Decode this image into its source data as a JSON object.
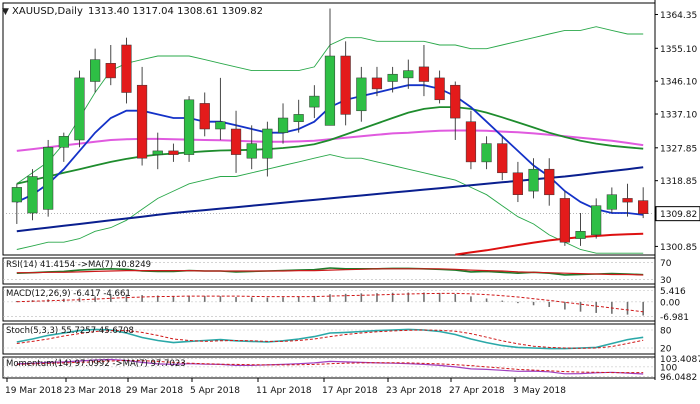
{
  "header": {
    "symbol": "XAUUSD,Daily",
    "ohlc": "1313.40 1317.04 1308.61 1309.82"
  },
  "colors": {
    "bull": "#2ebf45",
    "bear": "#e31b1b",
    "price_line_blue": "#1432c8",
    "sma_navy": "#0a1f8f",
    "ema_red": "#dd1010",
    "ma_green": "#1e8c2d",
    "ma_violet": "#e05adf",
    "bollinger": "#2aa84a",
    "rsi": "#1e7a2a",
    "rsi_ma": "#cc1a1a",
    "macd_hist": "#707070",
    "macd_signal": "#d01818",
    "stoch_main": "#2aa8a8",
    "stoch_signal": "#d01818",
    "momentum": "#a040c0",
    "momentum_ma": "#d01818"
  },
  "chart_data": [
    {
      "type": "candlestick",
      "panel": "price",
      "title": "XAUUSD,Daily",
      "y_ticks": [
        "1364.35",
        "1355.10",
        "1346.10",
        "1337.10",
        "1327.85",
        "1318.85",
        "1309.82",
        "1300.85"
      ],
      "ylim": [
        1298.5,
        1367.5
      ],
      "current_price": "1309.82",
      "x_labels": [
        "19 Mar 2018",
        "23 Mar 2018",
        "29 Mar 2018",
        "5 Apr 2018",
        "11 Apr 2018",
        "17 Apr 2018",
        "23 Apr 2018",
        "27 Apr 2018",
        "3 May 2018"
      ],
      "candles": [
        {
          "o": 1313.0,
          "h": 1318.0,
          "l": 1307.0,
          "c": 1317.0
        },
        {
          "o": 1310.0,
          "h": 1322.0,
          "l": 1308.0,
          "c": 1320.0
        },
        {
          "o": 1311.0,
          "h": 1330.0,
          "l": 1309.0,
          "c": 1328.0
        },
        {
          "o": 1328.0,
          "h": 1332.0,
          "l": 1324.0,
          "c": 1331.0
        },
        {
          "o": 1330.0,
          "h": 1349.0,
          "l": 1328.0,
          "c": 1347.0
        },
        {
          "o": 1346.0,
          "h": 1355.0,
          "l": 1343.0,
          "c": 1352.0
        },
        {
          "o": 1351.0,
          "h": 1356.0,
          "l": 1345.0,
          "c": 1347.0
        },
        {
          "o": 1356.0,
          "h": 1358.0,
          "l": 1340.0,
          "c": 1343.0
        },
        {
          "o": 1345.0,
          "h": 1350.0,
          "l": 1323.0,
          "c": 1325.0
        },
        {
          "o": 1326.0,
          "h": 1332.0,
          "l": 1322.0,
          "c": 1327.0
        },
        {
          "o": 1327.0,
          "h": 1329.0,
          "l": 1324.0,
          "c": 1326.0
        },
        {
          "o": 1326.0,
          "h": 1342.0,
          "l": 1324.0,
          "c": 1341.0
        },
        {
          "o": 1340.0,
          "h": 1343.0,
          "l": 1331.0,
          "c": 1333.0
        },
        {
          "o": 1333.0,
          "h": 1347.0,
          "l": 1330.0,
          "c": 1335.0
        },
        {
          "o": 1333.0,
          "h": 1338.0,
          "l": 1321.0,
          "c": 1326.0
        },
        {
          "o": 1325.0,
          "h": 1334.0,
          "l": 1322.0,
          "c": 1329.0
        },
        {
          "o": 1325.0,
          "h": 1335.0,
          "l": 1320.0,
          "c": 1333.0
        },
        {
          "o": 1332.0,
          "h": 1340.0,
          "l": 1329.0,
          "c": 1336.0
        },
        {
          "o": 1335.0,
          "h": 1341.0,
          "l": 1332.0,
          "c": 1337.0
        },
        {
          "o": 1339.0,
          "h": 1345.0,
          "l": 1336.0,
          "c": 1342.0
        },
        {
          "o": 1334.0,
          "h": 1366.0,
          "l": 1334.0,
          "c": 1353.0
        },
        {
          "o": 1353.0,
          "h": 1357.0,
          "l": 1334.0,
          "c": 1337.0
        },
        {
          "o": 1338.0,
          "h": 1350.0,
          "l": 1335.0,
          "c": 1347.0
        },
        {
          "o": 1347.0,
          "h": 1350.0,
          "l": 1342.0,
          "c": 1344.0
        },
        {
          "o": 1346.0,
          "h": 1350.0,
          "l": 1343.0,
          "c": 1348.0
        },
        {
          "o": 1347.0,
          "h": 1352.0,
          "l": 1344.0,
          "c": 1349.0
        },
        {
          "o": 1350.0,
          "h": 1356.0,
          "l": 1342.0,
          "c": 1346.0
        },
        {
          "o": 1347.0,
          "h": 1349.0,
          "l": 1340.0,
          "c": 1341.0
        },
        {
          "o": 1345.0,
          "h": 1346.0,
          "l": 1330.0,
          "c": 1336.0
        },
        {
          "o": 1335.0,
          "h": 1338.0,
          "l": 1322.0,
          "c": 1324.0
        },
        {
          "o": 1324.0,
          "h": 1331.0,
          "l": 1322.0,
          "c": 1329.0
        },
        {
          "o": 1329.0,
          "h": 1331.0,
          "l": 1319.0,
          "c": 1321.0
        },
        {
          "o": 1321.0,
          "h": 1324.0,
          "l": 1313.0,
          "c": 1315.0
        },
        {
          "o": 1316.0,
          "h": 1325.0,
          "l": 1314.0,
          "c": 1322.0
        },
        {
          "o": 1322.0,
          "h": 1325.0,
          "l": 1312.0,
          "c": 1315.0
        },
        {
          "o": 1314.0,
          "h": 1316.0,
          "l": 1301.0,
          "c": 1302.0
        },
        {
          "o": 1303.0,
          "h": 1310.0,
          "l": 1301.0,
          "c": 1305.0
        },
        {
          "o": 1304.0,
          "h": 1314.0,
          "l": 1303.0,
          "c": 1312.0
        },
        {
          "o": 1311.0,
          "h": 1317.0,
          "l": 1310.0,
          "c": 1315.0
        },
        {
          "o": 1314.0,
          "h": 1318.0,
          "l": 1309.0,
          "c": 1313.0
        },
        {
          "o": 1313.4,
          "h": 1317.04,
          "l": 1308.61,
          "c": 1309.82
        }
      ],
      "overlays": [
        {
          "key": "bb_upper",
          "style": "bollinger",
          "values": [
            1318,
            1321,
            1324,
            1329,
            1336,
            1343,
            1349,
            1351,
            1352,
            1353,
            1353,
            1353,
            1352,
            1351,
            1350,
            1349,
            1349,
            1349,
            1349,
            1350,
            1356,
            1358,
            1358,
            1357,
            1357,
            1357,
            1357,
            1356,
            1356,
            1355,
            1355,
            1356,
            1357,
            1358,
            1359,
            1360,
            1360,
            1361,
            1360,
            1359,
            1359
          ]
        },
        {
          "key": "bb_lower",
          "style": "bollinger",
          "values": [
            1300,
            1301,
            1302,
            1302,
            1303,
            1305,
            1306,
            1308,
            1311,
            1314,
            1316,
            1318,
            1319,
            1320,
            1320,
            1321,
            1322,
            1323,
            1324,
            1325,
            1326,
            1325,
            1325,
            1324,
            1323,
            1322,
            1321,
            1320,
            1319,
            1317,
            1315,
            1312,
            1309,
            1307,
            1304,
            1302,
            1300,
            1299,
            1299,
            1299,
            1299
          ]
        },
        {
          "key": "sma_long",
          "style": "sma_navy",
          "values": [
            1305,
            1305.5,
            1306,
            1306.5,
            1307,
            1307.5,
            1308,
            1308.5,
            1309,
            1309.5,
            1310,
            1310.4,
            1310.8,
            1311.2,
            1311.6,
            1312,
            1312.4,
            1312.8,
            1313.2,
            1313.6,
            1314,
            1314.4,
            1314.8,
            1315.2,
            1315.6,
            1316,
            1316.4,
            1316.8,
            1317.2,
            1317.6,
            1318,
            1318.4,
            1318.8,
            1319.2,
            1319.6,
            1320,
            1320.5,
            1321,
            1321.5,
            1322,
            1322.5
          ]
        },
        {
          "key": "ema_bottom",
          "style": "ema_red",
          "values": [
            null,
            null,
            null,
            null,
            null,
            null,
            null,
            null,
            null,
            null,
            null,
            null,
            null,
            null,
            null,
            null,
            null,
            null,
            null,
            null,
            null,
            null,
            null,
            null,
            null,
            null,
            null,
            null,
            1298.6,
            1299.2,
            1299.8,
            1300.5,
            1301.2,
            1301.9,
            1302.5,
            1303.0,
            1303.4,
            1303.7,
            1304.0,
            1304.2,
            1304.3
          ]
        },
        {
          "key": "ma_violet",
          "style": "ma_violet",
          "values": [
            1327,
            1327.5,
            1328,
            1328.5,
            1329,
            1329.5,
            1330,
            1330.2,
            1330.3,
            1330.3,
            1330.2,
            1330.1,
            1330,
            1329.9,
            1329.8,
            1329.6,
            1329.5,
            1329.5,
            1329.6,
            1329.8,
            1330.2,
            1330.6,
            1331,
            1331.4,
            1331.8,
            1332,
            1332.3,
            1332.5,
            1332.6,
            1332.6,
            1332.5,
            1332.3,
            1332.1,
            1331.8,
            1331.4,
            1331,
            1330.6,
            1330.2,
            1329.8,
            1329.2,
            1328.6
          ]
        },
        {
          "key": "ma_green",
          "style": "ma_green",
          "values": [
            1318,
            1319,
            1320,
            1321,
            1322,
            1323,
            1324,
            1324.8,
            1325.5,
            1326,
            1326.3,
            1326.6,
            1326.9,
            1327.1,
            1327.2,
            1327.3,
            1327.5,
            1327.8,
            1328.2,
            1328.8,
            1330,
            1331.5,
            1333,
            1334.5,
            1336,
            1337.5,
            1338.5,
            1339,
            1339,
            1338.5,
            1337.5,
            1336.2,
            1334.8,
            1333.4,
            1332,
            1330.8,
            1329.8,
            1329,
            1328.4,
            1328,
            1327.6
          ]
        },
        {
          "key": "ma_blue",
          "style": "price_line_blue",
          "values": [
            1313,
            1315,
            1318,
            1322,
            1327,
            1332,
            1336,
            1338,
            1338,
            1337,
            1336,
            1336,
            1335,
            1335,
            1334,
            1333,
            1332,
            1332,
            1333,
            1335,
            1339,
            1341,
            1342,
            1343,
            1344,
            1345,
            1345,
            1344,
            1342,
            1339,
            1335,
            1331,
            1327,
            1323,
            1320,
            1316,
            1313,
            1311,
            1310,
            1310,
            1309.5
          ]
        }
      ]
    },
    {
      "type": "line",
      "panel": "rsi",
      "label": "RSI(14) 41.4154 ->MA(7) 40.8249",
      "y_ticks": [
        "70",
        "30"
      ],
      "ylim": [
        20,
        80
      ],
      "series": [
        {
          "key": "rsi",
          "values": [
            45,
            46,
            48,
            49,
            52,
            54,
            55,
            54,
            50,
            49,
            49,
            51,
            50,
            50,
            48,
            49,
            50,
            51,
            52,
            53,
            57,
            55,
            55,
            55,
            56,
            56,
            55,
            54,
            52,
            48,
            49,
            47,
            45,
            47,
            45,
            41,
            42,
            43,
            44,
            43,
            41.4
          ]
        },
        {
          "key": "rsi_ma",
          "values": [
            46,
            46,
            47,
            47,
            48,
            49,
            50,
            51,
            51,
            51,
            51,
            51,
            50,
            50,
            50,
            50,
            50,
            50,
            51,
            51,
            52,
            53,
            54,
            55,
            55,
            55,
            55,
            55,
            54,
            52,
            51,
            50,
            48,
            47,
            46,
            45,
            44,
            43,
            42,
            42,
            40.8
          ]
        }
      ]
    },
    {
      "type": "bar",
      "panel": "macd",
      "label": "MACD(12,26,9) -6.417 -4.661",
      "y_ticks": [
        "5.416",
        "0.00",
        "-6.981"
      ],
      "ylim": [
        -9,
        7
      ],
      "histogram": [
        0.4,
        0.8,
        1.2,
        1.5,
        2.0,
        2.6,
        3.1,
        3.4,
        3.2,
        3.0,
        2.8,
        2.9,
        2.8,
        2.7,
        2.3,
        2.1,
        2.0,
        2.2,
        2.5,
        2.8,
        3.6,
        3.8,
        4.0,
        4.1,
        4.3,
        4.4,
        4.4,
        4.2,
        3.7,
        2.6,
        1.6,
        0.6,
        -0.6,
        -1.6,
        -2.4,
        -3.6,
        -4.6,
        -5.2,
        -5.6,
        -6.0,
        -6.4
      ],
      "signal": [
        0.1,
        0.3,
        0.5,
        0.8,
        1.0,
        1.3,
        1.7,
        2.0,
        2.3,
        2.5,
        2.6,
        2.7,
        2.7,
        2.7,
        2.7,
        2.6,
        2.5,
        2.5,
        2.5,
        2.5,
        2.7,
        2.9,
        3.1,
        3.3,
        3.5,
        3.7,
        3.9,
        4.0,
        4.0,
        3.8,
        3.4,
        2.9,
        2.3,
        1.5,
        0.7,
        -0.2,
        -1.1,
        -2.0,
        -2.9,
        -3.8,
        -4.66
      ]
    },
    {
      "type": "line",
      "panel": "stoch",
      "label": "Stoch(5,3,3) 55.7257 45.6708",
      "y_ticks": [
        "80",
        "20"
      ],
      "ylim": [
        0,
        100
      ],
      "series": [
        {
          "key": "stoch_main",
          "values": [
            40,
            50,
            62,
            70,
            78,
            82,
            80,
            70,
            55,
            45,
            38,
            42,
            45,
            48,
            44,
            42,
            40,
            44,
            50,
            58,
            70,
            72,
            75,
            78,
            80,
            82,
            80,
            75,
            65,
            50,
            38,
            28,
            22,
            20,
            18,
            18,
            20,
            22,
            35,
            48,
            55.7
          ]
        },
        {
          "key": "stoch_signal",
          "values": [
            35,
            42,
            50,
            60,
            68,
            75,
            78,
            78,
            72,
            62,
            50,
            45,
            42,
            44,
            45,
            44,
            42,
            42,
            45,
            50,
            58,
            65,
            70,
            74,
            77,
            79,
            80,
            79,
            76,
            68,
            56,
            44,
            34,
            26,
            22,
            20,
            19,
            20,
            25,
            35,
            45.7
          ]
        }
      ]
    },
    {
      "type": "line",
      "panel": "momentum",
      "label": "Momentum(14) 97.0992 ->MA(7) 97.7023",
      "y_ticks": [
        "103.4087",
        "100",
        "96.0482"
      ],
      "ylim": [
        95.5,
        104.0
      ],
      "series": [
        {
          "key": "momentum",
          "values": [
            101.2,
            101.5,
            101.8,
            102.0,
            102.4,
            102.8,
            103.0,
            102.6,
            101.8,
            101.2,
            101.0,
            101.3,
            101.1,
            101.0,
            100.6,
            100.6,
            100.8,
            101.0,
            101.3,
            101.6,
            102.2,
            102.0,
            101.8,
            101.6,
            101.5,
            101.3,
            101.0,
            100.6,
            100.0,
            99.2,
            99.0,
            98.6,
            98.2,
            98.3,
            98.0,
            97.2,
            97.3,
            97.6,
            97.8,
            97.5,
            97.1
          ]
        },
        {
          "key": "momentum_ma",
          "values": [
            101.0,
            101.2,
            101.4,
            101.6,
            101.8,
            102.1,
            102.4,
            102.6,
            102.5,
            102.2,
            101.8,
            101.5,
            101.3,
            101.1,
            101.0,
            100.9,
            100.8,
            100.8,
            100.9,
            101.0,
            101.3,
            101.5,
            101.6,
            101.7,
            101.7,
            101.6,
            101.4,
            101.2,
            100.9,
            100.5,
            100.0,
            99.5,
            99.0,
            98.7,
            98.4,
            98.1,
            97.9,
            97.8,
            97.7,
            97.7,
            97.7
          ]
        }
      ]
    }
  ]
}
